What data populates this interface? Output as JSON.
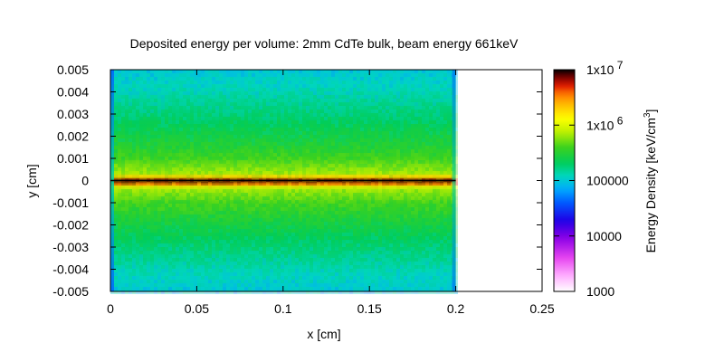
{
  "chart_data": {
    "type": "heatmap",
    "title": "Deposited energy per volume: 2mm CdTe bulk, beam energy 661keV",
    "xlabel": "x [cm]",
    "ylabel": "y [cm]",
    "xlim": [
      0,
      0.25
    ],
    "ylim": [
      -0.005,
      0.005
    ],
    "x_ticks": [
      "0",
      "0.05",
      "0.1",
      "0.15",
      "0.2",
      "0.25"
    ],
    "y_ticks": [
      "-0.005",
      "-0.004",
      "-0.003",
      "-0.002",
      "-0.001",
      "0",
      "0.001",
      "0.002",
      "0.003",
      "0.004",
      "0.005"
    ],
    "data_x_range": [
      0,
      0.2
    ],
    "profile_y": [
      -0.005,
      -0.004,
      -0.003,
      -0.002,
      -0.001,
      -0.0003,
      0,
      0.0003,
      0.001,
      0.002,
      0.003,
      0.004,
      0.005
    ],
    "profile_density": [
      100000,
      130000,
      180000,
      260000,
      400000,
      700000,
      10000000,
      700000,
      400000,
      260000,
      180000,
      130000,
      100000
    ],
    "edge_density": 70000,
    "colorbar": {
      "label": "Energy Density [keV/cm",
      "label_sup": "3",
      "label_end": "]",
      "scale": "log",
      "range": [
        1000,
        10000000
      ],
      "tick_values": [
        1000,
        10000,
        100000,
        1000000,
        10000000
      ],
      "tick_labels": [
        "1000",
        "10000",
        "100000",
        "1x10",
        "1x10"
      ],
      "tick_sups": [
        "",
        "",
        "",
        "6",
        "7"
      ]
    }
  }
}
